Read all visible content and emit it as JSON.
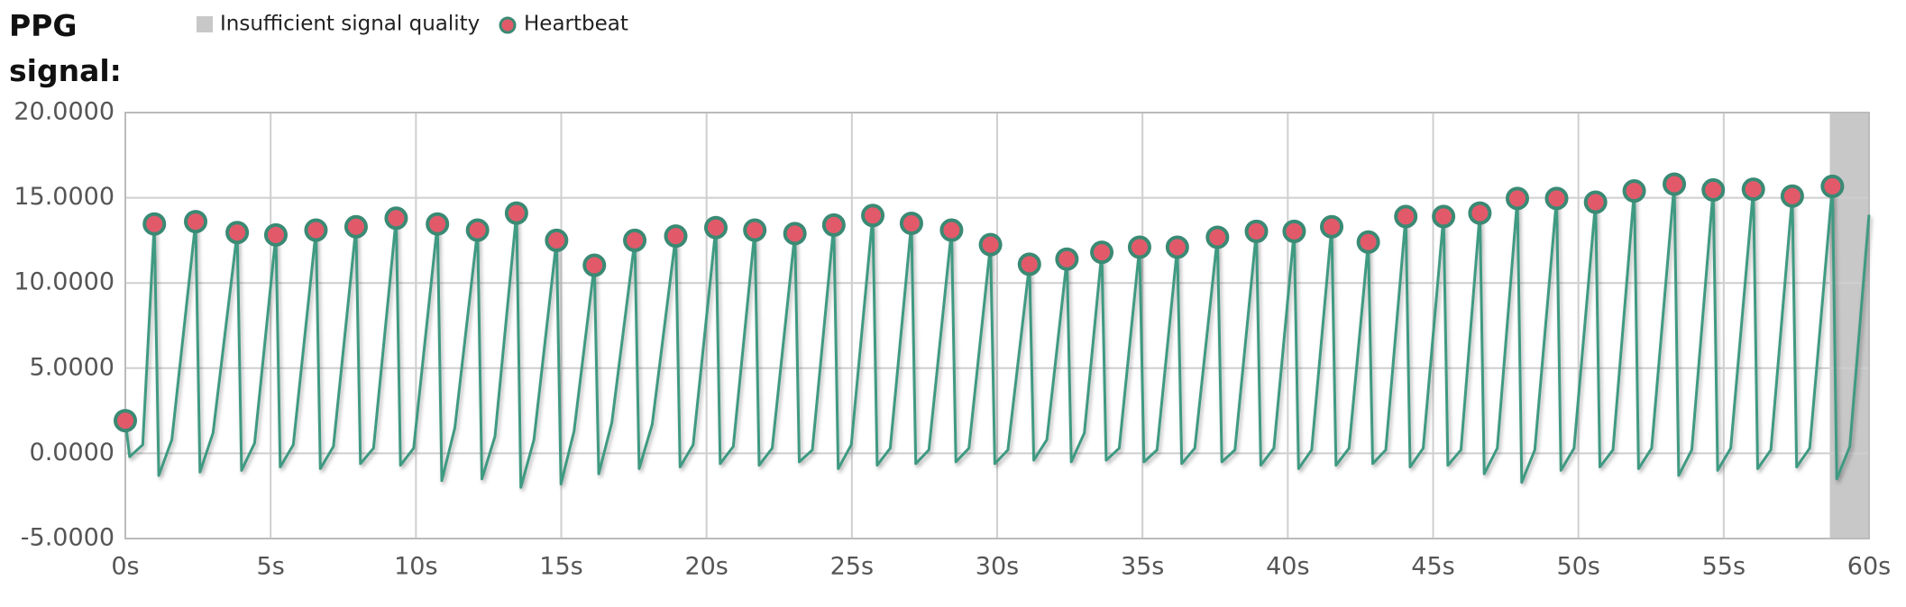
{
  "chart_data": {
    "type": "line",
    "title": "PPG signal:",
    "x": [
      0,
      0.15,
      0.6,
      1.0,
      1.15,
      1.6,
      2.42,
      2.57,
      3.02,
      3.85,
      4.0,
      4.45,
      5.18,
      5.33,
      5.78,
      6.56,
      6.71,
      7.16,
      7.94,
      8.09,
      8.54,
      9.32,
      9.47,
      9.92,
      10.74,
      10.89,
      11.34,
      12.12,
      12.27,
      12.72,
      13.46,
      13.61,
      14.06,
      14.84,
      14.99,
      15.44,
      16.14,
      16.29,
      16.74,
      17.53,
      17.68,
      18.13,
      18.94,
      19.09,
      19.54,
      20.32,
      20.47,
      20.92,
      21.66,
      21.81,
      22.26,
      23.04,
      23.19,
      23.64,
      24.38,
      24.53,
      24.98,
      25.72,
      25.87,
      26.32,
      27.05,
      27.2,
      27.65,
      28.43,
      28.58,
      29.03,
      29.77,
      29.92,
      30.37,
      31.11,
      31.26,
      31.71,
      32.4,
      32.55,
      33.0,
      33.6,
      33.75,
      34.2,
      34.9,
      35.05,
      35.5,
      36.2,
      36.35,
      36.8,
      37.58,
      37.73,
      38.18,
      38.92,
      39.07,
      39.52,
      40.22,
      40.37,
      40.82,
      41.51,
      41.66,
      42.11,
      42.77,
      42.92,
      43.37,
      44.06,
      44.21,
      44.66,
      45.36,
      45.51,
      45.96,
      46.61,
      46.76,
      47.21,
      47.9,
      48.05,
      48.5,
      49.25,
      49.4,
      49.85,
      50.59,
      50.74,
      51.19,
      51.92,
      52.07,
      52.52,
      53.3,
      53.45,
      53.9,
      54.64,
      54.79,
      55.24,
      56.02,
      56.17,
      56.62,
      57.36,
      57.51,
      57.96,
      58.74,
      58.89,
      59.34,
      60
    ],
    "series": [
      {
        "color": "#3f9a82",
        "values": [
          1.92,
          -0.2,
          0.5,
          13.46,
          -1.3,
          0.8,
          13.6,
          -1.1,
          1.2,
          12.96,
          -1.0,
          0.6,
          12.82,
          -0.8,
          0.5,
          13.1,
          -0.9,
          0.4,
          13.3,
          -0.6,
          0.3,
          13.8,
          -0.7,
          0.3,
          13.46,
          -1.6,
          1.5,
          13.1,
          -1.5,
          1.0,
          14.1,
          -2.0,
          0.8,
          12.5,
          -1.8,
          1.3,
          11.04,
          -1.2,
          1.8,
          12.5,
          -0.9,
          1.7,
          12.75,
          -0.8,
          0.5,
          13.25,
          -0.6,
          0.4,
          13.1,
          -0.7,
          0.3,
          12.9,
          -0.5,
          0.2,
          13.4,
          -0.9,
          0.5,
          13.96,
          -0.7,
          0.3,
          13.5,
          -0.6,
          0.2,
          13.1,
          -0.5,
          0.3,
          12.25,
          -0.6,
          0.2,
          11.1,
          -0.4,
          0.8,
          11.4,
          -0.5,
          1.2,
          11.8,
          -0.4,
          0.3,
          12.1,
          -0.5,
          0.2,
          12.1,
          -0.6,
          0.3,
          12.68,
          -0.5,
          0.2,
          13.03,
          -0.7,
          0.3,
          13.03,
          -0.9,
          0.2,
          13.3,
          -0.7,
          0.3,
          12.4,
          -0.6,
          0.2,
          13.9,
          -0.8,
          0.3,
          13.9,
          -0.7,
          0.2,
          14.1,
          -1.2,
          0.3,
          14.96,
          -1.7,
          0.2,
          14.96,
          -1.0,
          0.3,
          14.74,
          -0.8,
          0.2,
          15.4,
          -0.9,
          0.3,
          15.8,
          -1.3,
          0.2,
          15.46,
          -1.0,
          0.3,
          15.5,
          -0.9,
          0.2,
          15.1,
          -0.8,
          0.3,
          15.67,
          -1.5,
          0.4,
          14.0
        ]
      }
    ],
    "heartbeats": {
      "name": "Heartbeat",
      "color": "#e25a6a",
      "x": [
        0,
        1.0,
        2.42,
        3.85,
        5.18,
        6.56,
        7.94,
        9.32,
        10.74,
        12.12,
        13.46,
        14.84,
        16.14,
        17.53,
        18.94,
        20.32,
        21.66,
        23.04,
        24.38,
        25.72,
        27.05,
        28.43,
        29.77,
        31.11,
        32.4,
        33.6,
        34.9,
        36.2,
        37.58,
        38.92,
        40.22,
        41.51,
        42.77,
        44.06,
        45.36,
        46.61,
        47.9,
        49.25,
        50.59,
        51.92,
        53.3,
        54.64,
        56.02,
        57.36,
        58.74
      ],
      "values": [
        1.92,
        13.46,
        13.6,
        12.96,
        12.82,
        13.1,
        13.3,
        13.8,
        13.46,
        13.1,
        14.1,
        12.5,
        11.04,
        12.5,
        12.75,
        13.25,
        13.1,
        12.9,
        13.4,
        13.96,
        13.5,
        13.1,
        12.25,
        11.1,
        11.4,
        11.8,
        12.1,
        12.1,
        12.68,
        13.03,
        13.03,
        13.3,
        12.4,
        13.9,
        13.9,
        14.1,
        14.96,
        14.96,
        14.74,
        15.4,
        15.8,
        15.46,
        15.5,
        15.1,
        15.67
      ]
    },
    "regions": [
      {
        "name": "Insufficient signal quality",
        "color": "#c8c8c8",
        "x": [
          58.65,
          60
        ]
      }
    ],
    "xlim": [
      0,
      60
    ],
    "ylim": [
      -5,
      20
    ],
    "xticks": [
      {
        "value": 0,
        "label": "0s"
      },
      {
        "value": 5,
        "label": "5s"
      },
      {
        "value": 10,
        "label": "10s"
      },
      {
        "value": 15,
        "label": "15s"
      },
      {
        "value": 20,
        "label": "20s"
      },
      {
        "value": 25,
        "label": "25s"
      },
      {
        "value": 30,
        "label": "30s"
      },
      {
        "value": 35,
        "label": "35s"
      },
      {
        "value": 40,
        "label": "40s"
      },
      {
        "value": 45,
        "label": "45s"
      },
      {
        "value": 50,
        "label": "50s"
      },
      {
        "value": 55,
        "label": "55s"
      },
      {
        "value": 60,
        "label": "60s"
      }
    ],
    "yticks": [
      {
        "value": -5,
        "label": "-5.0000"
      },
      {
        "value": 0,
        "label": "0.0000"
      },
      {
        "value": 5,
        "label": "5.0000"
      },
      {
        "value": 10,
        "label": "10.0000"
      },
      {
        "value": 15,
        "label": "15.0000"
      },
      {
        "value": 20,
        "label": "20.0000"
      }
    ],
    "grid": true
  }
}
